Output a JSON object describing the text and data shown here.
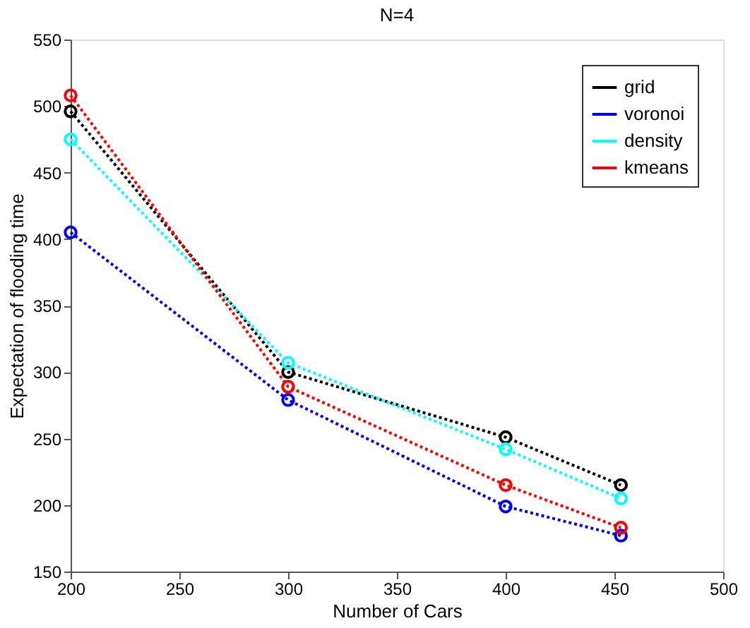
{
  "chart_data": {
    "type": "line",
    "title": "N=4",
    "xlabel": "Number of Cars",
    "ylabel": "Expectation of flooding time",
    "x": [
      200,
      300,
      400,
      453
    ],
    "series": [
      {
        "name": "grid",
        "color": "#000000",
        "values": [
          496,
          300,
          251,
          215
        ]
      },
      {
        "name": "voronoi",
        "color": "#0000ff",
        "values": [
          405,
          279,
          199,
          177
        ]
      },
      {
        "name": "density",
        "color": "#00ffff",
        "values": [
          475,
          307,
          242,
          205
        ]
      },
      {
        "name": "kmeans",
        "color": "#ff0000",
        "values": [
          508,
          289,
          215,
          183
        ]
      }
    ],
    "xlim": [
      200,
      500
    ],
    "xticks": [
      200,
      250,
      300,
      350,
      400,
      450,
      500
    ],
    "ylim": [
      150,
      550
    ],
    "yticks": [
      150,
      200,
      250,
      300,
      350,
      400,
      450,
      500,
      550
    ],
    "grid": false,
    "legend": "top right",
    "marker": "circle",
    "line_style": "dotted"
  }
}
